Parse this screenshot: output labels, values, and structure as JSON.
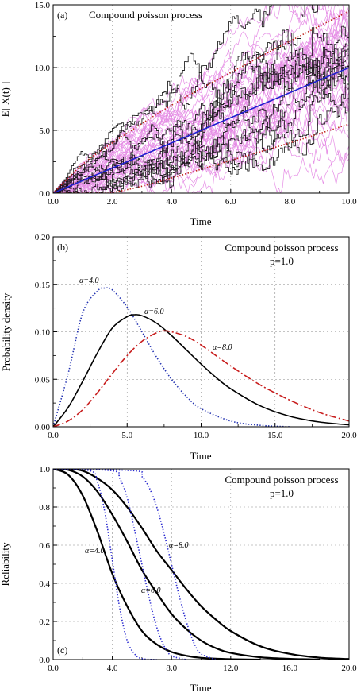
{
  "chart_data": [
    {
      "type": "line",
      "panel_label": "(a)",
      "title": "Compound poisson process",
      "xlabel": "Time",
      "ylabel": "E[ X(t) ]",
      "xlim": [
        0,
        10
      ],
      "ylim": [
        0,
        15
      ],
      "xticks": [
        0,
        2,
        4,
        6,
        8,
        10
      ],
      "xtick_labels": [
        "0.0",
        "2.0",
        "4.0",
        "6.0",
        "8.0",
        "10.0"
      ],
      "yticks": [
        0,
        5,
        10,
        15
      ],
      "ytick_labels": [
        "0.0",
        "5.0",
        "10.0",
        "15.0"
      ],
      "grid": true,
      "series": [
        {
          "role": "mean",
          "color": "#1f1fd0",
          "style": "solid",
          "x": [
            0,
            10
          ],
          "y": [
            0,
            10
          ]
        },
        {
          "role": "upper-bound",
          "color": "#c0201a",
          "style": "dotted",
          "x": [
            0,
            1,
            2,
            4,
            6,
            8,
            10
          ],
          "y": [
            0,
            2.3,
            4.0,
            7.0,
            9.6,
            12.1,
            14.5
          ]
        },
        {
          "role": "lower-bound",
          "color": "#c0201a",
          "style": "dotted",
          "x": [
            0,
            1.5,
            2,
            3,
            4,
            6,
            8,
            10
          ],
          "y": [
            0,
            0,
            0.05,
            0.55,
            1.2,
            2.6,
            4.0,
            5.5
          ]
        }
      ],
      "sample_paths": [
        {
          "color": "#dd66dd",
          "count": 40,
          "kind": "simulated-gaussian"
        },
        {
          "color": "#000000",
          "count": 12,
          "kind": "simulated-step"
        }
      ]
    },
    {
      "type": "line",
      "panel_label": "(b)",
      "title": "Compound poisson process",
      "subtitle": "p=1.0",
      "xlabel": "Time",
      "ylabel": "Probability density",
      "xlim": [
        0,
        20
      ],
      "ylim": [
        0,
        0.2
      ],
      "xticks": [
        0,
        5,
        10,
        15,
        20
      ],
      "xtick_labels": [
        "0.0",
        "5.0",
        "10.0",
        "15.0",
        "20.0"
      ],
      "yticks": [
        0,
        0.05,
        0.1,
        0.15,
        0.2
      ],
      "ytick_labels": [
        "0.00",
        "0.05",
        "0.10",
        "0.15",
        "0.20"
      ],
      "grid": true,
      "series": [
        {
          "label": "α=4.0",
          "color": "#1f2fb0",
          "style": "dotted",
          "x": [
            0,
            1,
            2,
            3,
            3.5,
            4,
            5,
            6,
            7,
            8,
            9,
            10,
            12,
            14,
            16
          ],
          "y": [
            0,
            0.055,
            0.12,
            0.143,
            0.146,
            0.144,
            0.126,
            0.1,
            0.073,
            0.05,
            0.032,
            0.019,
            0.006,
            0.0015,
            0
          ]
        },
        {
          "label": "α=6.0",
          "color": "#000000",
          "style": "solid",
          "x": [
            0,
            1,
            2,
            3,
            4,
            5,
            5.5,
            6,
            7,
            8,
            9,
            10,
            11,
            12,
            14,
            16,
            18,
            20
          ],
          "y": [
            0,
            0.02,
            0.048,
            0.078,
            0.104,
            0.116,
            0.118,
            0.117,
            0.109,
            0.096,
            0.081,
            0.066,
            0.052,
            0.04,
            0.022,
            0.011,
            0.005,
            0.002
          ]
        },
        {
          "label": "α=8.0",
          "color": "#c81e1e",
          "style": "dash-dot",
          "x": [
            0,
            1,
            2,
            3,
            4,
            5,
            6,
            7,
            7.5,
            8,
            9,
            10,
            12,
            14,
            16,
            18,
            20
          ],
          "y": [
            0,
            0.006,
            0.018,
            0.036,
            0.056,
            0.075,
            0.09,
            0.099,
            0.101,
            0.1,
            0.095,
            0.086,
            0.064,
            0.044,
            0.028,
            0.015,
            0.006
          ]
        }
      ]
    },
    {
      "type": "line",
      "panel_label": "(c)",
      "title": "Compound poisson process",
      "subtitle": "p=1.0",
      "xlabel": "Time",
      "ylabel": "Reliability",
      "xlim": [
        0,
        20
      ],
      "ylim": [
        0,
        1
      ],
      "xticks": [
        0,
        4,
        8,
        12,
        16,
        20
      ],
      "xtick_labels": [
        "0.0",
        "4.0",
        "8.0",
        "12.0",
        "16.0",
        "20.0"
      ],
      "yticks": [
        0,
        0.2,
        0.4,
        0.6,
        0.8,
        1.0
      ],
      "ytick_labels": [
        "0.0",
        "0.2",
        "0.4",
        "0.6",
        "0.8",
        "1.0"
      ],
      "grid": true,
      "series": [
        {
          "label": "α=4.0",
          "color": "#000000",
          "style": "solid",
          "x": [
            0,
            1,
            2,
            3,
            4,
            5,
            6,
            7,
            8,
            9,
            10,
            12,
            14
          ],
          "y": [
            1,
            0.97,
            0.86,
            0.67,
            0.45,
            0.28,
            0.15,
            0.08,
            0.04,
            0.02,
            0.009,
            0.002,
            0
          ]
        },
        {
          "label": "α=6.0",
          "color": "#000000",
          "style": "solid",
          "x": [
            0,
            1,
            2,
            3,
            4,
            5,
            6,
            7,
            8,
            9,
            10,
            11,
            12,
            14,
            16,
            18
          ],
          "y": [
            1,
            0.995,
            0.96,
            0.88,
            0.76,
            0.62,
            0.47,
            0.35,
            0.24,
            0.16,
            0.1,
            0.06,
            0.035,
            0.012,
            0.004,
            0
          ]
        },
        {
          "label": "α=8.0",
          "color": "#000000",
          "style": "solid",
          "x": [
            0,
            1,
            2,
            3,
            4,
            5,
            6,
            7,
            8,
            9,
            10,
            11,
            12,
            14,
            16,
            18,
            20
          ],
          "y": [
            1,
            0.999,
            0.99,
            0.95,
            0.89,
            0.8,
            0.69,
            0.57,
            0.47,
            0.37,
            0.28,
            0.21,
            0.15,
            0.07,
            0.03,
            0.01,
            0.003
          ]
        },
        {
          "role": "deterministic-4",
          "color": "#2a2ad0",
          "style": "dotted",
          "x": [
            0,
            2.5,
            3,
            3.5,
            4,
            4.5,
            5,
            5.5,
            6,
            7
          ],
          "y": [
            1,
            0.99,
            0.93,
            0.77,
            0.52,
            0.27,
            0.1,
            0.03,
            0.005,
            0
          ]
        },
        {
          "role": "deterministic-6",
          "color": "#2a2ad0",
          "style": "dotted",
          "x": [
            0,
            4,
            4.5,
            5,
            5.5,
            6,
            6.5,
            7,
            7.5,
            8,
            9
          ],
          "y": [
            1,
            0.99,
            0.95,
            0.85,
            0.68,
            0.5,
            0.32,
            0.17,
            0.07,
            0.02,
            0
          ]
        },
        {
          "role": "deterministic-8",
          "color": "#2a2ad0",
          "style": "dotted",
          "x": [
            0,
            5.5,
            6,
            6.5,
            7,
            7.5,
            8,
            8.5,
            9,
            9.5,
            10,
            11
          ],
          "y": [
            1,
            0.99,
            0.96,
            0.9,
            0.8,
            0.66,
            0.5,
            0.34,
            0.2,
            0.09,
            0.03,
            0
          ]
        }
      ]
    }
  ]
}
